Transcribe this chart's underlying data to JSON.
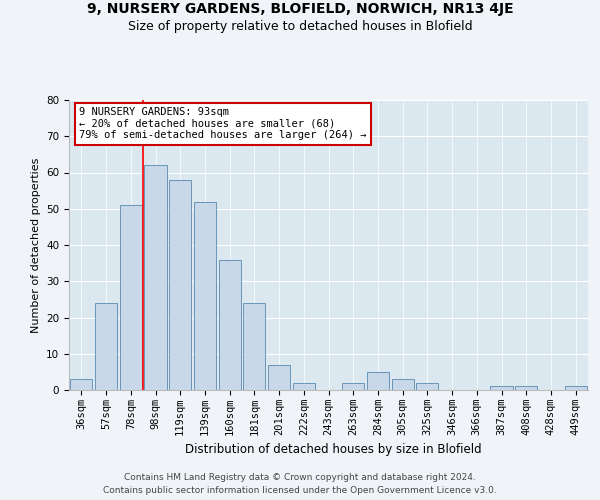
{
  "title1": "9, NURSERY GARDENS, BLOFIELD, NORWICH, NR13 4JE",
  "title2": "Size of property relative to detached houses in Blofield",
  "xlabel": "Distribution of detached houses by size in Blofield",
  "ylabel": "Number of detached properties",
  "categories": [
    "36sqm",
    "57sqm",
    "78sqm",
    "98sqm",
    "119sqm",
    "139sqm",
    "160sqm",
    "181sqm",
    "201sqm",
    "222sqm",
    "243sqm",
    "263sqm",
    "284sqm",
    "305sqm",
    "325sqm",
    "346sqm",
    "366sqm",
    "387sqm",
    "408sqm",
    "428sqm",
    "449sqm"
  ],
  "values": [
    3,
    24,
    51,
    62,
    58,
    52,
    36,
    24,
    7,
    2,
    0,
    2,
    5,
    3,
    2,
    0,
    0,
    1,
    1,
    0,
    1
  ],
  "bar_color": "#c8d8e8",
  "bar_edge_color": "#5a8ab0",
  "red_line_x": 2.5,
  "annotation_title": "9 NURSERY GARDENS: 93sqm",
  "annotation_line1": "← 20% of detached houses are smaller (68)",
  "annotation_line2": "79% of semi-detached houses are larger (264) →",
  "annotation_box_color": "#ffffff",
  "annotation_box_edge": "#cc0000",
  "ylim": [
    0,
    80
  ],
  "yticks": [
    0,
    10,
    20,
    30,
    40,
    50,
    60,
    70,
    80
  ],
  "footer1": "Contains HM Land Registry data © Crown copyright and database right 2024.",
  "footer2": "Contains public sector information licensed under the Open Government Licence v3.0.",
  "fig_background": "#f0f4f8",
  "plot_background": "#dce8f0",
  "title1_fontsize": 10,
  "title2_fontsize": 9,
  "tick_fontsize": 7.5,
  "ylabel_fontsize": 8,
  "xlabel_fontsize": 8.5,
  "footer_fontsize": 6.5,
  "annotation_fontsize": 7.5
}
